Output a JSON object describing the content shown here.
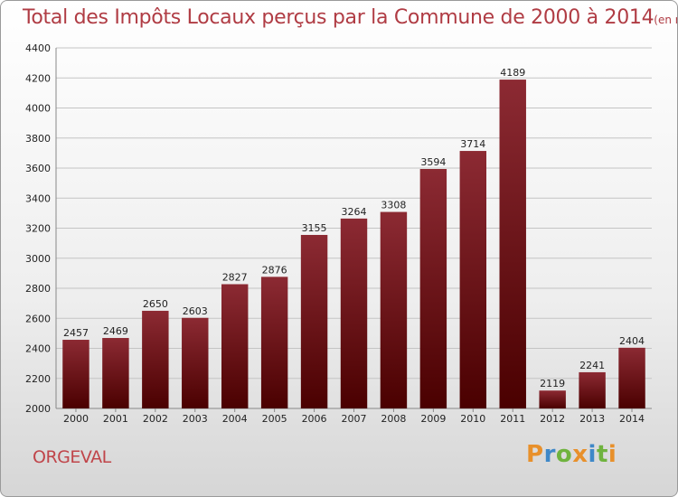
{
  "chart_data": {
    "type": "bar",
    "title": "Total des Impôts Locaux perçus par la Commune de 2000 à 2014",
    "unit": "(en milliers d'€)",
    "categories": [
      "2000",
      "2001",
      "2002",
      "2003",
      "2004",
      "2005",
      "2006",
      "2007",
      "2008",
      "2009",
      "2010",
      "2011",
      "2012",
      "2013",
      "2014"
    ],
    "values": [
      2457,
      2469,
      2650,
      2603,
      2827,
      2876,
      3155,
      3264,
      3308,
      3594,
      3714,
      4189,
      2119,
      2241,
      2404
    ],
    "ylim": [
      2000,
      4400
    ],
    "yticks": [
      2000,
      2200,
      2400,
      2600,
      2800,
      3000,
      3200,
      3400,
      3600,
      3800,
      4000,
      4200,
      4400
    ],
    "grid": true,
    "bar_color_top": "#8c2a33",
    "bar_color_bottom": "#4a0000"
  },
  "commune": "ORGEVAL",
  "logo": {
    "letters": [
      "P",
      "r",
      "o",
      "x",
      "i",
      "t",
      "i"
    ],
    "colors": [
      "#e8902b",
      "#3f88c8",
      "#6fb33e",
      "#e8902b",
      "#3f88c8",
      "#6fb33e",
      "#e8902b"
    ]
  }
}
